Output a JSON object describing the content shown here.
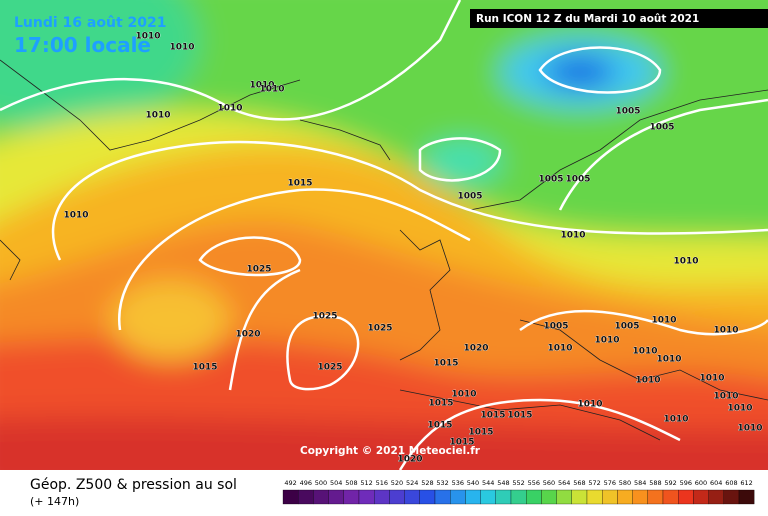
{
  "header": {
    "date": "Lundi 16 août 2021",
    "time": "17:00 locale",
    "run": "Run ICON 12 Z du Mardi 10 août 2021",
    "copyright": "Copyright © 2021 Meteociel.fr"
  },
  "isobar_labels": [
    "1010",
    "1010",
    "1010",
    "1010",
    "1010",
    "1010",
    "1005",
    "1005",
    "1015",
    "1005",
    "1005",
    "1005",
    "1010",
    "1010",
    "1010",
    "1025",
    "1025",
    "1025",
    "1020",
    "1005",
    "1005",
    "1010",
    "1010",
    "1020",
    "1015",
    "1025",
    "1015",
    "1010",
    "1010",
    "1010",
    "1010",
    "1010",
    "1010",
    "1010",
    "1010",
    "1015",
    "1015",
    "1015",
    "1010",
    "1015",
    "1015",
    "1015",
    "1020",
    "1010",
    "1010",
    "1010"
  ],
  "legend": {
    "title": "Géop. Z500 & pression au sol",
    "lead": "(+ 147h)",
    "scale": [
      492,
      496,
      500,
      504,
      508,
      512,
      516,
      520,
      524,
      528,
      532,
      536,
      540,
      544,
      548,
      552,
      556,
      560,
      564,
      568,
      572,
      576,
      580,
      584,
      588,
      592,
      596,
      600,
      604,
      608,
      612
    ]
  }
}
